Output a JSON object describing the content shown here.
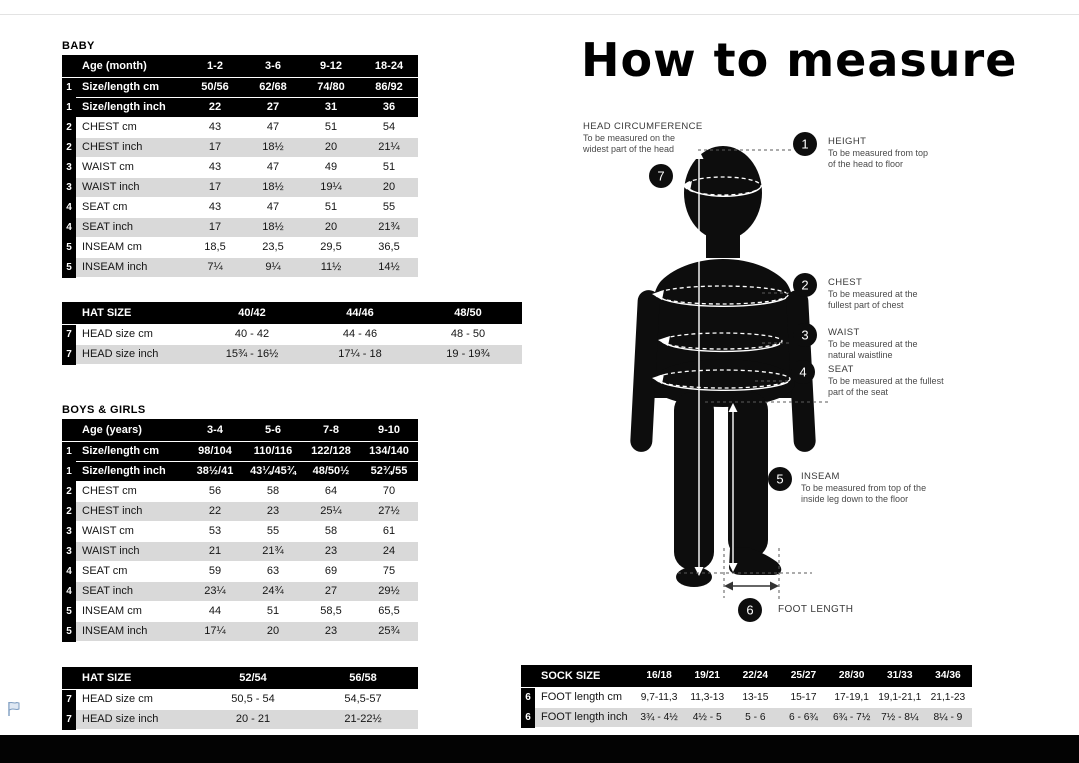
{
  "page": {
    "big_title": "How to measure"
  },
  "colors": {
    "table_black": "#000000",
    "row_gray": "#d9d9d9",
    "annotation_text": "#4a4a4a",
    "flag_blue": "#7d9cc0"
  },
  "flag_icon": "annotation-flag",
  "tables": {
    "baby": {
      "section_label": "BABY",
      "header": [
        "Age (month)",
        "1-2",
        "3-6",
        "9-12",
        "18-24"
      ],
      "rows": [
        {
          "num": "1",
          "label": "Size/length cm",
          "values": [
            "50/56",
            "62/68",
            "74/80",
            "86/92"
          ],
          "style": "black"
        },
        {
          "num": "1",
          "label": "Size/length inch",
          "values": [
            "22",
            "27",
            "31",
            "36"
          ],
          "style": "black"
        },
        {
          "num": "2",
          "label": "CHEST cm",
          "values": [
            "43",
            "47",
            "51",
            "54"
          ],
          "style": "white"
        },
        {
          "num": "2",
          "label": "CHEST inch",
          "values": [
            "17",
            "18½",
            "20",
            "21¼"
          ],
          "style": "gray"
        },
        {
          "num": "3",
          "label": "WAIST cm",
          "values": [
            "43",
            "47",
            "49",
            "51"
          ],
          "style": "white"
        },
        {
          "num": "3",
          "label": "WAIST inch",
          "values": [
            "17",
            "18½",
            "19¼",
            "20"
          ],
          "style": "gray"
        },
        {
          "num": "4",
          "label": "SEAT cm",
          "values": [
            "43",
            "47",
            "51",
            "55"
          ],
          "style": "white"
        },
        {
          "num": "4",
          "label": "SEAT inch",
          "values": [
            "17",
            "18½",
            "20",
            "21¾"
          ],
          "style": "gray"
        },
        {
          "num": "5",
          "label": "INSEAM cm",
          "values": [
            "18,5",
            "23,5",
            "29,5",
            "36,5"
          ],
          "style": "white"
        },
        {
          "num": "5",
          "label": "INSEAM inch",
          "values": [
            "7¼",
            "9¼",
            "11½",
            "14½"
          ],
          "style": "gray"
        }
      ]
    },
    "baby_hat": {
      "header": [
        "HAT SIZE",
        "40/42",
        "44/46",
        "48/50"
      ],
      "rows": [
        {
          "num": "7",
          "label": "HEAD size cm",
          "values": [
            "40 - 42",
            "44 - 46",
            "48 - 50"
          ],
          "style": "white"
        },
        {
          "num": "7",
          "label": "HEAD size inch",
          "values": [
            "15¾ - 16½",
            "17¼ - 18",
            "19 - 19¾"
          ],
          "style": "gray"
        }
      ]
    },
    "boys_girls": {
      "section_label": "BOYS & GIRLS",
      "header": [
        "Age (years)",
        "3-4",
        "5-6",
        "7-8",
        "9-10"
      ],
      "rows": [
        {
          "num": "1",
          "label": "Size/length cm",
          "values": [
            "98/104",
            "110/116",
            "122/128",
            "134/140"
          ],
          "style": "black"
        },
        {
          "num": "1",
          "label": "Size/length inch",
          "values": [
            "38½/41",
            "43¼/45¾",
            "48/50½",
            "52¾/55"
          ],
          "style": "black"
        },
        {
          "num": "2",
          "label": "CHEST cm",
          "values": [
            "56",
            "58",
            "64",
            "70"
          ],
          "style": "white"
        },
        {
          "num": "2",
          "label": "CHEST inch",
          "values": [
            "22",
            "23",
            "25¼",
            "27½"
          ],
          "style": "gray"
        },
        {
          "num": "3",
          "label": "WAIST cm",
          "values": [
            "53",
            "55",
            "58",
            "61"
          ],
          "style": "white"
        },
        {
          "num": "3",
          "label": "WAIST inch",
          "values": [
            "21",
            "21¾",
            "23",
            "24"
          ],
          "style": "gray"
        },
        {
          "num": "4",
          "label": "SEAT cm",
          "values": [
            "59",
            "63",
            "69",
            "75"
          ],
          "style": "white"
        },
        {
          "num": "4",
          "label": "SEAT inch",
          "values": [
            "23¼",
            "24¾",
            "27",
            "29½"
          ],
          "style": "gray"
        },
        {
          "num": "5",
          "label": "INSEAM cm",
          "values": [
            "44",
            "51",
            "58,5",
            "65,5"
          ],
          "style": "white"
        },
        {
          "num": "5",
          "label": "INSEAM inch",
          "values": [
            "17¼",
            "20",
            "23",
            "25¾"
          ],
          "style": "gray"
        }
      ]
    },
    "kids_hat": {
      "header": [
        "HAT SIZE",
        "52/54",
        "56/58"
      ],
      "rows": [
        {
          "num": "7",
          "label": "HEAD size cm",
          "values": [
            "50,5 - 54",
            "54,5-57"
          ],
          "style": "white"
        },
        {
          "num": "7",
          "label": "HEAD size inch",
          "values": [
            "20 - 21",
            "21-22½"
          ],
          "style": "gray"
        }
      ]
    },
    "sock": {
      "header": [
        "SOCK SIZE",
        "16/18",
        "19/21",
        "22/24",
        "25/27",
        "28/30",
        "31/33",
        "34/36"
      ],
      "rows": [
        {
          "num": "6",
          "label": "FOOT length cm",
          "values": [
            "9,7-11,3",
            "11,3-13",
            "13-15",
            "15-17",
            "17-19,1",
            "19,1-21,1",
            "21,1-23"
          ],
          "style": "white"
        },
        {
          "num": "6",
          "label": "FOOT length inch",
          "values": [
            "3¾ - 4½",
            "4½ - 5",
            "5 - 6",
            "6 - 6¾",
            "6¾ - 7½",
            "7½ - 8¼",
            "8¼ - 9"
          ],
          "style": "gray"
        }
      ]
    }
  },
  "figure": {
    "annotations": {
      "head_circumference": {
        "num": "7",
        "title": "HEAD CIRCUMFERENCE",
        "line1": "To be measured on the",
        "line2": "widest part of the head"
      },
      "height": {
        "num": "1",
        "title": "HEIGHT",
        "line1": "To be measured from top",
        "line2": "of the head to floor"
      },
      "chest": {
        "num": "2",
        "title": "CHEST",
        "line1": "To be measured at the",
        "line2": "fullest part of chest"
      },
      "waist": {
        "num": "3",
        "title": "WAIST",
        "line1": "To be measured at the",
        "line2": "natural waistline"
      },
      "seat": {
        "num": "4",
        "title": "SEAT",
        "line1": "To be measured at the fullest",
        "line2": "part of the seat"
      },
      "inseam": {
        "num": "5",
        "title": "INSEAM",
        "line1": "To be measured from top of the",
        "line2": "inside leg down to the floor"
      },
      "foot_length": {
        "num": "6",
        "title": "FOOT LENGTH"
      }
    }
  }
}
